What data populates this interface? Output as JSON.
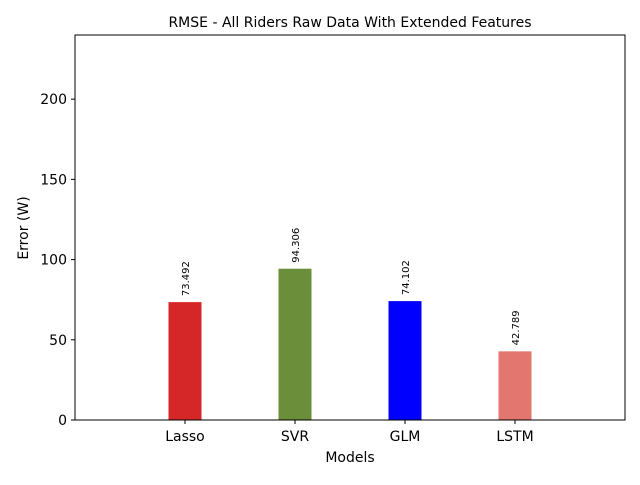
{
  "chart_data": {
    "type": "bar",
    "title": "RMSE - All Riders Raw Data With Extended Features",
    "xlabel": "Models",
    "ylabel": "Error (W)",
    "categories": [
      "Lasso",
      "SVR",
      "GLM",
      "LSTM"
    ],
    "values": [
      73.492,
      94.306,
      74.102,
      42.789
    ],
    "data_labels": [
      "73.492",
      "94.306",
      "74.102",
      "42.789"
    ],
    "colors": [
      "#d62728",
      "#6b8e3a",
      "#0000ff",
      "#e3766f"
    ],
    "ylim": [
      0,
      240
    ],
    "yticks": [
      0,
      50,
      100,
      150,
      200
    ],
    "grid": false,
    "legend": "none"
  }
}
